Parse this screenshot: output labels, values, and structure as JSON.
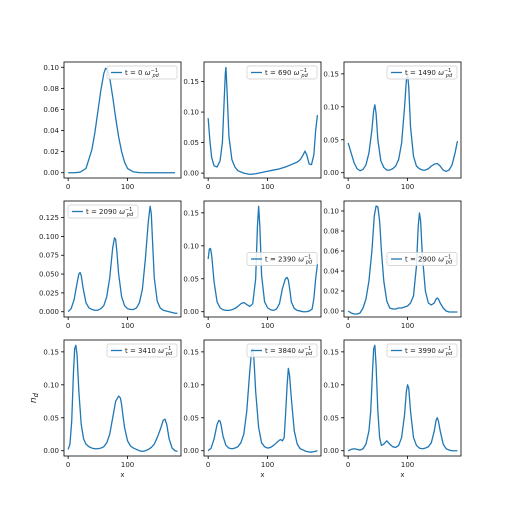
{
  "figure": {
    "ylabel": "n_d",
    "line_color": "#1f77b4"
  },
  "chart_data": [
    {
      "type": "line",
      "legend": {
        "text": "t = 0",
        "unit": "ω_pd^-1",
        "location": "upper right"
      },
      "xlabel": "",
      "xlim": [
        -7,
        190
      ],
      "ylim": [
        -0.005,
        0.105
      ],
      "xticks": [
        0,
        100
      ],
      "yticks": [
        0.0,
        0.02,
        0.04,
        0.06,
        0.08,
        0.1
      ],
      "ytick_labels": [
        "0.00",
        "0.02",
        "0.04",
        "0.06",
        "0.08",
        "0.10"
      ],
      "series": [
        {
          "x": [
            0,
            10,
            20,
            30,
            40,
            45,
            50,
            55,
            60,
            63,
            66,
            70,
            75,
            80,
            85,
            90,
            95,
            100,
            110,
            120,
            130,
            140,
            150,
            160,
            170,
            180
          ],
          "values": [
            0.0,
            0.0,
            0.0005,
            0.004,
            0.022,
            0.038,
            0.058,
            0.078,
            0.094,
            0.099,
            0.098,
            0.09,
            0.072,
            0.052,
            0.034,
            0.02,
            0.01,
            0.004,
            0.0008,
            0.0001,
            0.0,
            0.0,
            0.0,
            0.0,
            0.0,
            0.0
          ]
        }
      ]
    },
    {
      "type": "line",
      "legend": {
        "text": "t = 690",
        "unit": "ω_pd^-1",
        "location": "upper right"
      },
      "xlabel": "",
      "xlim": [
        -7,
        190
      ],
      "ylim": [
        -0.008,
        0.182
      ],
      "xticks": [
        0,
        100
      ],
      "yticks": [
        0.0,
        0.05,
        0.1,
        0.15
      ],
      "ytick_labels": [
        "0.00",
        "0.05",
        "0.10",
        "0.15"
      ],
      "series": [
        {
          "x": [
            0,
            3,
            6,
            10,
            15,
            20,
            24,
            27,
            29,
            30,
            32,
            35,
            40,
            45,
            50,
            60,
            70,
            80,
            90,
            100,
            110,
            120,
            130,
            140,
            150,
            155,
            160,
            163,
            166,
            170,
            174,
            178,
            181,
            184
          ],
          "values": [
            0.09,
            0.052,
            0.025,
            0.012,
            0.01,
            0.02,
            0.05,
            0.12,
            0.165,
            0.173,
            0.13,
            0.06,
            0.022,
            0.01,
            0.004,
            0.0,
            -0.002,
            -0.001,
            0.001,
            0.003,
            0.005,
            0.007,
            0.01,
            0.014,
            0.018,
            0.022,
            0.03,
            0.036,
            0.03,
            0.015,
            0.014,
            0.03,
            0.07,
            0.095
          ]
        }
      ]
    },
    {
      "type": "line",
      "legend": {
        "text": "t = 1490",
        "unit": "ω_pd^-1",
        "location": "upper right"
      },
      "xlabel": "",
      "xlim": [
        -7,
        190
      ],
      "ylim": [
        -0.008,
        0.168
      ],
      "xticks": [
        0,
        100
      ],
      "yticks": [
        0.0,
        0.05,
        0.1,
        0.15
      ],
      "ytick_labels": [
        "0.00",
        "0.05",
        "0.10",
        "0.15"
      ],
      "series": [
        {
          "x": [
            0,
            5,
            10,
            15,
            20,
            25,
            30,
            35,
            40,
            43,
            45,
            47,
            50,
            55,
            60,
            65,
            70,
            75,
            80,
            85,
            90,
            95,
            98,
            100,
            102,
            105,
            110,
            115,
            120,
            125,
            130,
            135,
            140,
            145,
            150,
            155,
            160,
            165,
            170,
            175,
            180,
            184
          ],
          "values": [
            0.045,
            0.03,
            0.015,
            0.006,
            0.003,
            0.005,
            0.012,
            0.03,
            0.065,
            0.095,
            0.103,
            0.09,
            0.05,
            0.018,
            0.008,
            0.004,
            0.004,
            0.006,
            0.01,
            0.02,
            0.045,
            0.1,
            0.14,
            0.15,
            0.13,
            0.07,
            0.025,
            0.01,
            0.006,
            0.004,
            0.004,
            0.006,
            0.01,
            0.013,
            0.014,
            0.01,
            0.004,
            0.002,
            0.004,
            0.012,
            0.03,
            0.048
          ]
        }
      ]
    },
    {
      "type": "line",
      "legend": {
        "text": "t = 2090",
        "unit": "ω_pd^-1",
        "location": "upper left"
      },
      "xlabel": "",
      "xlim": [
        -7,
        190
      ],
      "ylim": [
        -0.007,
        0.147
      ],
      "xticks": [
        0,
        100
      ],
      "yticks": [
        0.0,
        0.025,
        0.05,
        0.075,
        0.1,
        0.125
      ],
      "ytick_labels": [
        "0.000",
        "0.025",
        "0.050",
        "0.075",
        "0.100",
        "0.125"
      ],
      "series": [
        {
          "x": [
            0,
            5,
            10,
            15,
            18,
            20,
            22,
            25,
            30,
            35,
            40,
            45,
            50,
            55,
            60,
            65,
            70,
            75,
            78,
            80,
            82,
            85,
            90,
            95,
            100,
            105,
            110,
            115,
            120,
            125,
            130,
            135,
            138,
            140,
            142,
            145,
            150,
            155,
            160,
            165,
            170,
            175,
            180,
            184
          ],
          "values": [
            0.0,
            0.004,
            0.016,
            0.038,
            0.05,
            0.052,
            0.048,
            0.032,
            0.012,
            0.005,
            0.003,
            0.002,
            0.002,
            0.004,
            0.008,
            0.02,
            0.045,
            0.085,
            0.098,
            0.096,
            0.08,
            0.05,
            0.02,
            0.008,
            0.004,
            0.003,
            0.003,
            0.005,
            0.012,
            0.03,
            0.07,
            0.12,
            0.14,
            0.13,
            0.095,
            0.045,
            0.014,
            0.005,
            0.002,
            0.001,
            0.0,
            -0.001,
            -0.002,
            -0.002
          ]
        }
      ]
    },
    {
      "type": "line",
      "legend": {
        "text": "t = 2390",
        "unit": "ω_pd^-1",
        "location": "center right"
      },
      "xlabel": "",
      "xlim": [
        -7,
        190
      ],
      "ylim": [
        -0.008,
        0.168
      ],
      "xticks": [
        0,
        100
      ],
      "yticks": [
        0.0,
        0.05,
        0.1,
        0.15
      ],
      "ytick_labels": [
        "0.00",
        "0.05",
        "0.10",
        "0.15"
      ],
      "series": [
        {
          "x": [
            0,
            2,
            4,
            6,
            10,
            15,
            20,
            25,
            30,
            35,
            40,
            45,
            50,
            55,
            60,
            65,
            70,
            75,
            80,
            83,
            85,
            87,
            90,
            95,
            100,
            105,
            110,
            115,
            120,
            125,
            130,
            133,
            135,
            138,
            140,
            145,
            150,
            155,
            160,
            165,
            170,
            175,
            178,
            181,
            184
          ],
          "values": [
            0.08,
            0.095,
            0.096,
            0.085,
            0.045,
            0.015,
            0.006,
            0.003,
            0.002,
            0.002,
            0.003,
            0.005,
            0.008,
            0.012,
            0.014,
            0.011,
            0.008,
            0.012,
            0.05,
            0.13,
            0.16,
            0.13,
            0.055,
            0.015,
            0.006,
            0.003,
            0.002,
            0.004,
            0.012,
            0.035,
            0.05,
            0.052,
            0.048,
            0.03,
            0.015,
            0.005,
            0.002,
            0.001,
            0.0,
            0.0,
            0.001,
            0.004,
            0.02,
            0.05,
            0.072
          ]
        }
      ]
    },
    {
      "type": "line",
      "legend": {
        "text": "t = 2900",
        "unit": "ω_pd^-1",
        "location": "center right"
      },
      "xlabel": "",
      "xlim": [
        -7,
        190
      ],
      "ylim": [
        -0.006,
        0.11
      ],
      "xticks": [
        0,
        100
      ],
      "yticks": [
        0.0,
        0.02,
        0.04,
        0.06,
        0.08,
        0.1
      ],
      "ytick_labels": [
        "0.00",
        "0.02",
        "0.04",
        "0.06",
        "0.08",
        "0.10"
      ],
      "series": [
        {
          "x": [
            0,
            5,
            10,
            15,
            20,
            25,
            30,
            35,
            40,
            44,
            47,
            50,
            53,
            56,
            60,
            65,
            70,
            75,
            80,
            85,
            90,
            95,
            100,
            105,
            110,
            115,
            118,
            120,
            122,
            125,
            130,
            135,
            140,
            145,
            148,
            150,
            152,
            155,
            160,
            165,
            170,
            175,
            180,
            184
          ],
          "values": [
            0.0,
            -0.002,
            -0.003,
            -0.003,
            -0.002,
            0.003,
            0.012,
            0.03,
            0.06,
            0.095,
            0.105,
            0.104,
            0.09,
            0.06,
            0.03,
            0.01,
            0.003,
            0.002,
            0.002,
            0.003,
            0.003,
            0.004,
            0.005,
            0.008,
            0.015,
            0.045,
            0.085,
            0.098,
            0.09,
            0.055,
            0.02,
            0.008,
            0.006,
            0.008,
            0.012,
            0.013,
            0.012,
            0.008,
            0.003,
            0.0,
            -0.001,
            -0.001,
            -0.001,
            -0.001
          ]
        }
      ]
    },
    {
      "type": "line",
      "legend": {
        "text": "t = 3410",
        "unit": "ω_pd^-1",
        "location": "upper right"
      },
      "xlabel": "x",
      "xlim": [
        -7,
        190
      ],
      "ylim": [
        -0.008,
        0.168
      ],
      "xticks": [
        0,
        100
      ],
      "yticks": [
        0.0,
        0.05,
        0.1,
        0.15
      ],
      "ytick_labels": [
        "0.00",
        "0.05",
        "0.10",
        "0.15"
      ],
      "series": [
        {
          "x": [
            0,
            3,
            6,
            9,
            11,
            13,
            15,
            18,
            22,
            26,
            30,
            35,
            40,
            45,
            50,
            55,
            60,
            65,
            70,
            75,
            80,
            85,
            88,
            90,
            92,
            95,
            100,
            105,
            110,
            115,
            120,
            125,
            130,
            135,
            140,
            145,
            150,
            155,
            160,
            163,
            166,
            170,
            175,
            180,
            184
          ],
          "values": [
            0.002,
            0.01,
            0.045,
            0.12,
            0.155,
            0.16,
            0.145,
            0.09,
            0.04,
            0.018,
            0.01,
            0.006,
            0.004,
            0.003,
            0.003,
            0.004,
            0.006,
            0.012,
            0.025,
            0.05,
            0.075,
            0.083,
            0.08,
            0.07,
            0.055,
            0.035,
            0.015,
            0.007,
            0.004,
            0.002,
            0.0,
            -0.001,
            0.0,
            0.002,
            0.005,
            0.01,
            0.02,
            0.032,
            0.046,
            0.048,
            0.04,
            0.018,
            0.004,
            0.0,
            -0.001
          ]
        }
      ]
    },
    {
      "type": "line",
      "legend": {
        "text": "t = 3840",
        "unit": "ω_pd^-1",
        "location": "upper right"
      },
      "xlabel": "x",
      "xlim": [
        -7,
        190
      ],
      "ylim": [
        -0.008,
        0.168
      ],
      "xticks": [
        0,
        100
      ],
      "yticks": [
        0.0,
        0.05,
        0.1,
        0.15
      ],
      "ytick_labels": [
        "0.00",
        "0.05",
        "0.10",
        "0.15"
      ],
      "series": [
        {
          "x": [
            0,
            5,
            10,
            15,
            18,
            20,
            22,
            25,
            30,
            35,
            40,
            45,
            50,
            55,
            60,
            65,
            70,
            73,
            75,
            77,
            80,
            85,
            90,
            95,
            100,
            105,
            110,
            115,
            120,
            122,
            125,
            128,
            130,
            133,
            135,
            137,
            140,
            145,
            150,
            155,
            160,
            165,
            170,
            175,
            180,
            184
          ],
          "values": [
            0.0,
            0.004,
            0.018,
            0.04,
            0.046,
            0.045,
            0.038,
            0.022,
            0.008,
            0.004,
            0.003,
            0.004,
            0.006,
            0.012,
            0.025,
            0.06,
            0.12,
            0.15,
            0.155,
            0.14,
            0.09,
            0.035,
            0.012,
            0.006,
            0.004,
            0.005,
            0.008,
            0.012,
            0.016,
            0.017,
            0.015,
            0.02,
            0.05,
            0.1,
            0.125,
            0.115,
            0.08,
            0.03,
            0.01,
            0.003,
            0.001,
            -0.001,
            -0.002,
            -0.002,
            -0.001,
            0.0
          ]
        }
      ]
    },
    {
      "type": "line",
      "legend": {
        "text": "t = 3990",
        "unit": "ω_pd^-1",
        "location": "upper right"
      },
      "xlabel": "x",
      "xlim": [
        -7,
        190
      ],
      "ylim": [
        -0.008,
        0.168
      ],
      "xticks": [
        0,
        100
      ],
      "yticks": [
        0.0,
        0.05,
        0.1,
        0.15
      ],
      "ytick_labels": [
        "0.00",
        "0.05",
        "0.10",
        "0.15"
      ],
      "series": [
        {
          "x": [
            0,
            5,
            10,
            15,
            20,
            25,
            30,
            35,
            38,
            41,
            43,
            45,
            47,
            50,
            53,
            56,
            60,
            65,
            70,
            75,
            80,
            85,
            90,
            95,
            98,
            100,
            102,
            105,
            110,
            115,
            120,
            125,
            130,
            135,
            140,
            145,
            148,
            150,
            152,
            155,
            160,
            165,
            170,
            175,
            180,
            184
          ],
          "values": [
            0.0,
            0.002,
            0.003,
            0.002,
            0.001,
            0.003,
            0.01,
            0.03,
            0.06,
            0.12,
            0.155,
            0.16,
            0.13,
            0.06,
            0.02,
            0.008,
            0.01,
            0.015,
            0.01,
            0.006,
            0.005,
            0.008,
            0.02,
            0.055,
            0.09,
            0.1,
            0.095,
            0.06,
            0.02,
            0.008,
            0.004,
            0.003,
            0.004,
            0.006,
            0.012,
            0.03,
            0.046,
            0.05,
            0.045,
            0.03,
            0.01,
            0.003,
            0.001,
            0.0,
            0.0,
            0.0
          ]
        }
      ]
    }
  ]
}
